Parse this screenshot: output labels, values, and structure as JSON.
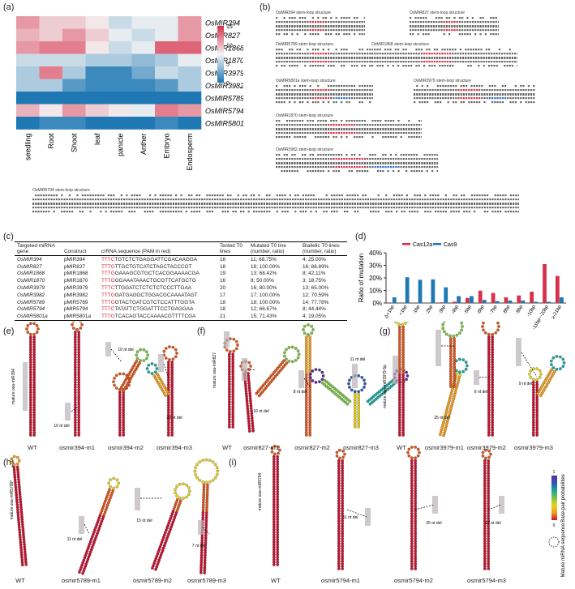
{
  "panel_labels": {
    "a": "(a)",
    "b": "(b)",
    "c": "(c)",
    "d": "(d)",
    "e": "(e)",
    "f": "(f)",
    "g": "(g)",
    "h": "(h)",
    "i": "(i)"
  },
  "heatmap": {
    "genes": [
      "OsMIR394",
      "OsMIR827",
      "OsMIR1868",
      "OsMIR1870",
      "OsMIR3979",
      "OsMIR3982",
      "OsMIR5789",
      "OsMIR5794",
      "OsMIR5801"
    ],
    "tissues": [
      "seedling",
      "Root",
      "Shoot",
      "leaf",
      "panicle",
      "Anther",
      "Embryo",
      "Endosperm"
    ],
    "values": [
      [
        11,
        9,
        9,
        8,
        6,
        7,
        7,
        11
      ],
      [
        10,
        9,
        11,
        9,
        7,
        6,
        7,
        11
      ],
      [
        11,
        12,
        12,
        8,
        6,
        7,
        13,
        13
      ],
      [
        6,
        6,
        6,
        5,
        5,
        4,
        5,
        7
      ],
      [
        5,
        12,
        5,
        1,
        1,
        3,
        6,
        5
      ],
      [
        5,
        5,
        2,
        1,
        1,
        1,
        2,
        5
      ],
      [
        0,
        0,
        0,
        0,
        0,
        0,
        0,
        0
      ],
      [
        10,
        8,
        11,
        9,
        8,
        7,
        12,
        11
      ],
      [
        0,
        1,
        1,
        0,
        0,
        0,
        1,
        0
      ]
    ],
    "colorbar_ticks": [
      "15",
      "10",
      "5",
      "0"
    ],
    "vmin": 0,
    "vmax": 15,
    "colors": {
      "low": "#1f78b4",
      "mid": "#f4f4f4",
      "high": "#d6304a"
    }
  },
  "stemloops": {
    "titles": [
      "OsMIR394 stem-loop structure",
      "OsMIR827 stem-loop structure",
      "OsMIR5789 stem-loop structure",
      "OsMIR1868 stem-loop structure",
      "OsMIR5801a stem-loop structure",
      "OsMIR3979 stem-loop structure",
      "OsMIR1870 stem-loop structure",
      "OsMIR3982 stem-loop structure",
      "OsMIR5794 stem-loop structure"
    ]
  },
  "table": {
    "headers": [
      "Targeted miRNA gene",
      "Construct",
      "crRNA sequence (PAM in red)",
      "Tested T0 lines",
      "Mutated T0 line (number, ratio)",
      "Biallelic T0 lines (number, ratio)"
    ],
    "rows": [
      {
        "gene": "OsMIR394",
        "construct": "pMIR394",
        "pam": "TTTC",
        "seq": "TGTCTCTGAGGATTCGACAAGGA",
        "tested": "16",
        "mutated": "11; 68.75%",
        "biallelic": "4; 25.00%"
      },
      {
        "gene": "OsMIR827",
        "construct": "pMIR827",
        "pam": "TTTG",
        "seq": "TTGCTGTCATCTAGCTACCCGT",
        "tested": "18",
        "mutated": "18; 100.00%",
        "biallelic": "16; 88.89%"
      },
      {
        "gene": "OsMIR1868",
        "construct": "pMIR1868",
        "pam": "TTTG",
        "seq": "GAAAGCGTGCTCACGGAAAACGA",
        "tested": "19",
        "mutated": "13; 68.42%",
        "biallelic": "8; 42.11%"
      },
      {
        "gene": "OsMIR1870",
        "construct": "pMIR1870",
        "pam": "TTTG",
        "seq": "GGAAATAAACTGCGTTCATGCTG",
        "tested": "16",
        "mutated": "8; 50.00%",
        "biallelic": "3; 18.75%"
      },
      {
        "gene": "OsMIR3979",
        "construct": "pMIR3979",
        "pam": "TTTC",
        "seq": "TTGGATCTCTCTCTCCCTTGAA",
        "tested": "20",
        "mutated": "16; 80.00%",
        "biallelic": "13; 65.00%"
      },
      {
        "gene": "OsMIR3982",
        "construct": "pMIR3982",
        "pam": "TTTG",
        "seq": "GATGAGGCTGGACGCAAAATAGT",
        "tested": "17",
        "mutated": "17; 100.00%",
        "biallelic": "12; 70.59%"
      },
      {
        "gene": "OsMIR5789",
        "construct": "pMIR5789",
        "pam": "TTTG",
        "seq": "GTACTGATCGTCTCCATTTGGTA",
        "tested": "18",
        "mutated": "18; 100.00%",
        "biallelic": "14; 77.78%"
      },
      {
        "gene": "OsMIR5794",
        "construct": "pMIR5794",
        "pam": "TTTC",
        "seq": "TATATTCTGGATTTCCTGAGGAA",
        "tested": "18",
        "mutated": "12; 66.67%",
        "biallelic": "8; 44.44%"
      },
      {
        "gene": "OsMIR5801a",
        "construct": "pMIR5801a",
        "pam": "TTTG",
        "seq": "TCACAGTACCAAAACGTTTTCGA",
        "tested": "21",
        "mutated": "15; 71.43%",
        "biallelic": "4; 19.05%"
      }
    ]
  },
  "chart_data": {
    "type": "bar",
    "categories": [
      "Δ+1bp",
      "+1bp",
      "-1bp",
      "-2bp",
      "-3bp",
      "-4bp",
      "-5bp",
      "-6bp",
      "-7bp",
      "-8bp",
      "-9bp",
      "-10bp",
      "-11bp~-20bp",
      "≥-21bp"
    ],
    "series": [
      {
        "name": "Cas12a",
        "color": "#d6304a",
        "values": [
          0.0,
          0.0,
          0.0,
          0.0,
          0.5,
          1.0,
          4.0,
          9.8,
          8.0,
          4.5,
          6.0,
          9.0,
          31.0,
          21.5
        ]
      },
      {
        "name": "Cas9",
        "color": "#1f78b4",
        "values": [
          4.5,
          20.5,
          18.5,
          18.8,
          12.5,
          5.5,
          5.5,
          2.5,
          1.5,
          2.0,
          2.0,
          1.0,
          1.0,
          4.5
        ]
      }
    ],
    "ylabel": "Ratio of mutation",
    "yticks": [
      "0%",
      "10%",
      "20%",
      "30%",
      "40%"
    ],
    "ylim": [
      0,
      40
    ]
  },
  "rna_e": {
    "labels": [
      "WT",
      "osmir394-m1",
      "osmir394-m2",
      "osmir394-m3"
    ],
    "mature": "mature osa-miR394",
    "dels": [
      "10 nt del",
      "10 nt del",
      "22 nt del"
    ]
  },
  "rna_f": {
    "labels": [
      "WT",
      "osmir827-m1",
      "osmir827-m2",
      "osmir827-m3"
    ],
    "mature": "mature osa-miR827",
    "dels": [
      "16 nt del",
      "8 nt del",
      "11 nt del"
    ]
  },
  "rna_g": {
    "labels": [
      "WT",
      "osmir3979-m1",
      "osmir3979-m2",
      "osmir3979-m3"
    ],
    "mature": "mature osa-miR3979-5p",
    "dels": [
      "25 nt del",
      "6 nt del",
      "9 nt del"
    ]
  },
  "rna_h": {
    "labels": [
      "WT",
      "osmir5789-m1",
      "osmir5789-m2",
      "osmir5789-m3"
    ],
    "mature": "mature osa-miR5789*",
    "dels": [
      "11 nt del",
      "15 nt del",
      "7 nt del"
    ]
  },
  "rna_i": {
    "labels": [
      "WT",
      "osmir5794-m1",
      "osmir5794-m2",
      "osmir5794-m3"
    ],
    "mature": "mature osa-miR5794",
    "dels": [
      "11 nt del",
      "25 nt del",
      "12 nt del"
    ],
    "legend_prob": "Base-pair probabilities",
    "legend_mature": "Mature miRNA sequence",
    "prob_ticks": [
      "0",
      "1"
    ]
  }
}
